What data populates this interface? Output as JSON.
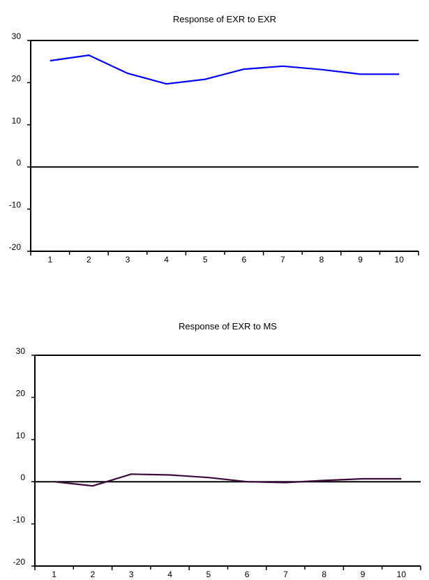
{
  "chart_data": [
    {
      "type": "line",
      "title": "Response of EXR to EXR",
      "xlabel": "",
      "ylabel": "",
      "x": [
        1,
        2,
        3,
        4,
        5,
        6,
        7,
        8,
        9,
        10
      ],
      "series": [
        {
          "values": [
            25.2,
            26.5,
            22.2,
            19.7,
            20.8,
            23.2,
            23.9,
            23.1,
            22.0,
            22.0
          ],
          "color": "#0000ff"
        }
      ],
      "ylim": [
        -20,
        30
      ],
      "yticks": [
        -20,
        -10,
        0,
        10,
        20,
        30
      ],
      "xticks": [
        "1",
        "2",
        "3",
        "4",
        "5",
        "6",
        "7",
        "8",
        "9",
        "10"
      ],
      "zero_line": true,
      "grid": false,
      "legend": "none"
    },
    {
      "type": "line",
      "title": "Response of EXR to MS",
      "xlabel": "",
      "ylabel": "",
      "x": [
        1,
        2,
        3,
        4,
        5,
        6,
        7,
        8,
        9,
        10
      ],
      "series": [
        {
          "values": [
            0.0,
            -1.0,
            1.8,
            1.6,
            1.0,
            0.0,
            -0.2,
            0.3,
            0.7,
            0.7
          ],
          "color": "#3b0a3b"
        }
      ],
      "ylim": [
        -20,
        30
      ],
      "yticks": [
        -20,
        -10,
        0,
        10,
        20,
        30
      ],
      "xticks": [
        "1",
        "2",
        "3",
        "4",
        "5",
        "6",
        "7",
        "8",
        "9",
        "10"
      ],
      "zero_line": true,
      "grid": false,
      "legend": "none"
    }
  ]
}
